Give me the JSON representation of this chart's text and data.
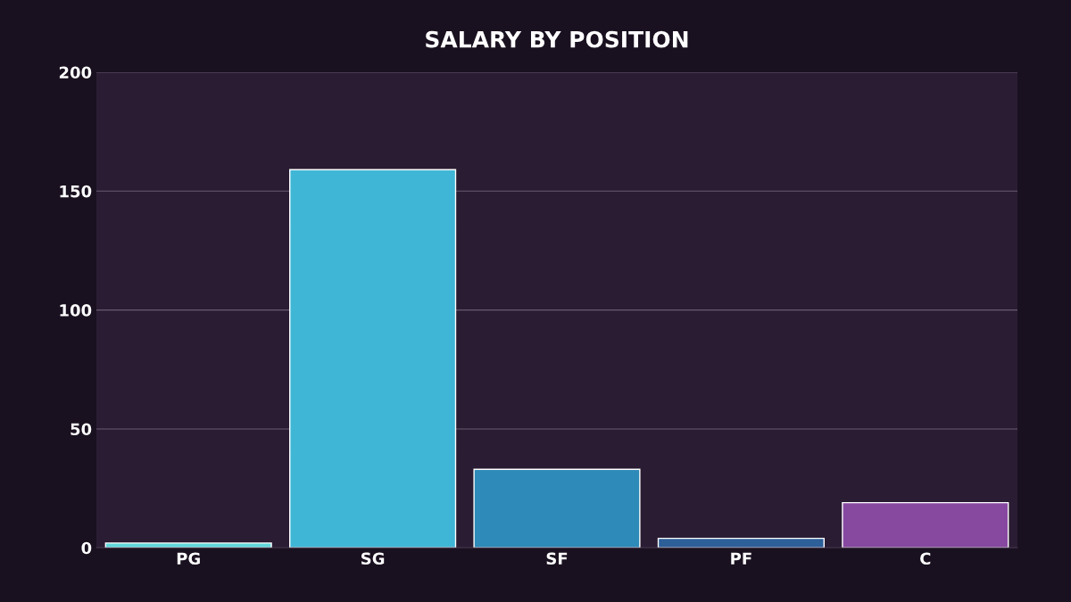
{
  "chart_data": {
    "type": "bar",
    "title": "SALARY BY POSITION",
    "categories": [
      "PG",
      "SG",
      "SF",
      "PF",
      "C"
    ],
    "values": [
      2,
      159,
      33,
      4,
      19
    ],
    "colors": [
      "#5fd8dc",
      "#40b6d6",
      "#2e8ab8",
      "#2d5f98",
      "#8748a0"
    ],
    "ylim": [
      0,
      200
    ],
    "yticks": [
      0,
      50,
      100,
      150,
      200
    ],
    "grid": "y"
  }
}
